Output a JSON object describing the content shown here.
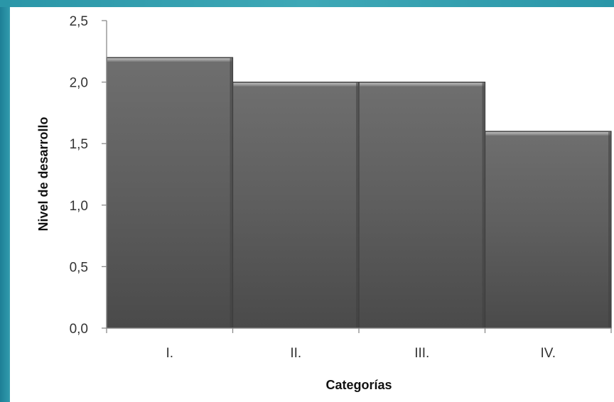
{
  "chart_data": {
    "type": "bar",
    "categories": [
      "I.",
      "II.",
      "III.",
      "IV."
    ],
    "values": [
      2.2,
      2.0,
      2.0,
      1.6
    ],
    "xlabel": "Categorías",
    "ylabel": "Nivel de desarrollo",
    "ylim": [
      0,
      2.5
    ],
    "yticks": [
      "0,0",
      "0,5",
      "1,0",
      "1,5",
      "2,0",
      "2,5"
    ],
    "grid": false,
    "legend": "none",
    "bar_color": "#5f5f5f"
  }
}
